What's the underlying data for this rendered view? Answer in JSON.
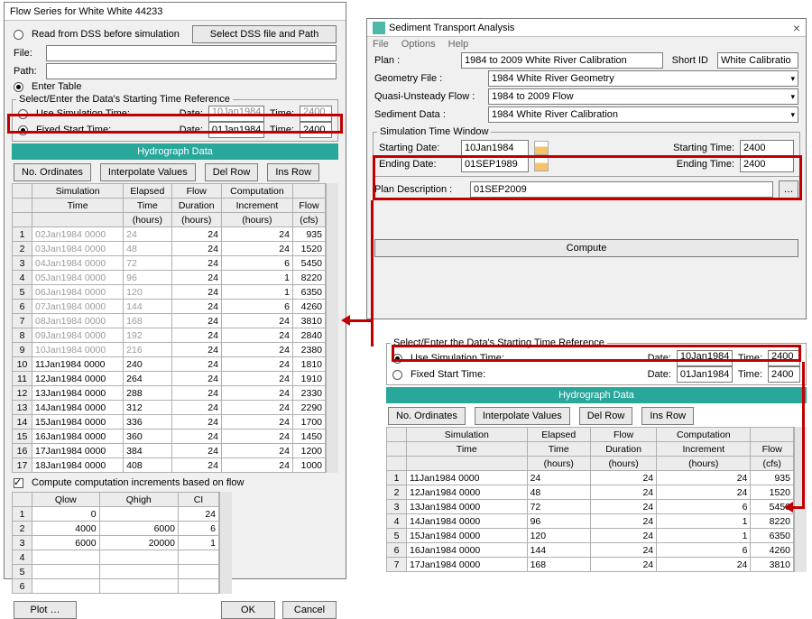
{
  "left": {
    "title": "Flow Series for White White 44233",
    "read_dss": "Read from DSS before simulation",
    "select_dss_btn": "Select DSS file and Path",
    "file_lbl": "File:",
    "path_lbl": "Path:",
    "enter_table": "Enter Table",
    "fs_legend": "Select/Enter the Data's Starting Time Reference",
    "use_sim": "Use Simulation Time:",
    "fixed": "Fixed Start Time:",
    "date_lbl": "Date:",
    "time_lbl": "Time:",
    "sim_date": "10Jan1984",
    "sim_time": "2400",
    "fix_date": "01Jan1984",
    "fix_time": "2400",
    "hydro": "Hydrograph Data",
    "no_ord": "No. Ordinates",
    "interp": "Interpolate Values",
    "delrow": "Del Row",
    "insrow": "Ins Row",
    "h1a": "Simulation",
    "h1b": "Elapsed",
    "h1c": "Flow",
    "h1d": "Computation",
    "h1e": "",
    "h2a": "Time",
    "h2b": "Time",
    "h2c": "Duration",
    "h2d": "Increment",
    "h2e": "Flow",
    "h3a": "",
    "h3b": "(hours)",
    "h3c": "(hours)",
    "h3d": "(hours)",
    "h3e": "(cfs)",
    "rows": [
      [
        "02Jan1984 0000",
        "24",
        "24",
        "24",
        "935",
        true
      ],
      [
        "03Jan1984 0000",
        "48",
        "24",
        "24",
        "1520",
        true
      ],
      [
        "04Jan1984 0000",
        "72",
        "24",
        "6",
        "5450",
        true
      ],
      [
        "05Jan1984 0000",
        "96",
        "24",
        "1",
        "8220",
        true
      ],
      [
        "06Jan1984 0000",
        "120",
        "24",
        "1",
        "6350",
        true
      ],
      [
        "07Jan1984 0000",
        "144",
        "24",
        "6",
        "4260",
        true
      ],
      [
        "08Jan1984 0000",
        "168",
        "24",
        "24",
        "3810",
        true
      ],
      [
        "09Jan1984 0000",
        "192",
        "24",
        "24",
        "2840",
        true
      ],
      [
        "10Jan1984 0000",
        "216",
        "24",
        "24",
        "2380",
        true
      ],
      [
        "11Jan1984 0000",
        "240",
        "24",
        "24",
        "1810",
        false
      ],
      [
        "12Jan1984 0000",
        "264",
        "24",
        "24",
        "1910",
        false
      ],
      [
        "13Jan1984 0000",
        "288",
        "24",
        "24",
        "2330",
        false
      ],
      [
        "14Jan1984 0000",
        "312",
        "24",
        "24",
        "2290",
        false
      ],
      [
        "15Jan1984 0000",
        "336",
        "24",
        "24",
        "1700",
        false
      ],
      [
        "16Jan1984 0000",
        "360",
        "24",
        "24",
        "1450",
        false
      ],
      [
        "17Jan1984 0000",
        "384",
        "24",
        "24",
        "1200",
        false
      ],
      [
        "18Jan1984 0000",
        "408",
        "24",
        "24",
        "1000",
        false
      ]
    ],
    "comp_chk": "Compute computation increments based on flow",
    "qh": [
      "Qlow",
      "Qhigh",
      "CI"
    ],
    "qrows": [
      [
        "0",
        "",
        "24"
      ],
      [
        "4000",
        "6000",
        "6"
      ],
      [
        "6000",
        "20000",
        "1"
      ],
      [
        "",
        "",
        ""
      ],
      [
        "",
        "",
        ""
      ],
      [
        "",
        "",
        ""
      ]
    ],
    "plot": "Plot …",
    "ok": "OK",
    "cancel": "Cancel"
  },
  "top": {
    "title": "Sediment Transport Analysis",
    "m1": "File",
    "m2": "Options",
    "m3": "Help",
    "plan_lbl": "Plan :",
    "plan": "1984 to 2009 White River Calibration",
    "short_lbl": "Short ID",
    "short": "White Calibratio",
    "geom_lbl": "Geometry File :",
    "geom": "1984 White River Geometry",
    "qf_lbl": "Quasi-Unsteady Flow :",
    "qf": "1984 to 2009 Flow",
    "sed_lbl": "Sediment Data :",
    "sed": "1984 White River Calibration",
    "stw": "Simulation Time Window",
    "sdl": "Starting Date:",
    "sd": "10Jan1984",
    "edl": "Ending Date:",
    "ed": "01SEP1989",
    "stl": "Starting Time:",
    "st": "2400",
    "etl": "Ending Time:",
    "et": "2400",
    "pdl": "Plan Description :",
    "pd": "01SEP2009",
    "compute": "Compute"
  },
  "bot": {
    "legend": "Select/Enter the Data's Starting Time Reference",
    "use": "Use Simulation Time:",
    "fix": "Fixed Start Time:",
    "dl": "Date:",
    "tl": "Time:",
    "ud": "10Jan1984",
    "ut": "2400",
    "fd": "01Jan1984",
    "ft": "2400",
    "hydro": "Hydrograph Data",
    "no": "No. Ordinates",
    "ip": "Interpolate Values",
    "dr": "Del Row",
    "ir": "Ins Row",
    "rows": [
      [
        "11Jan1984 0000",
        "24",
        "24",
        "24",
        "935"
      ],
      [
        "12Jan1984 0000",
        "48",
        "24",
        "24",
        "1520"
      ],
      [
        "13Jan1984 0000",
        "72",
        "24",
        "6",
        "5450"
      ],
      [
        "14Jan1984 0000",
        "96",
        "24",
        "1",
        "8220"
      ],
      [
        "15Jan1984 0000",
        "120",
        "24",
        "1",
        "6350"
      ],
      [
        "16Jan1984 0000",
        "144",
        "24",
        "6",
        "4260"
      ],
      [
        "17Jan1984 0000",
        "168",
        "24",
        "24",
        "3810"
      ]
    ]
  }
}
